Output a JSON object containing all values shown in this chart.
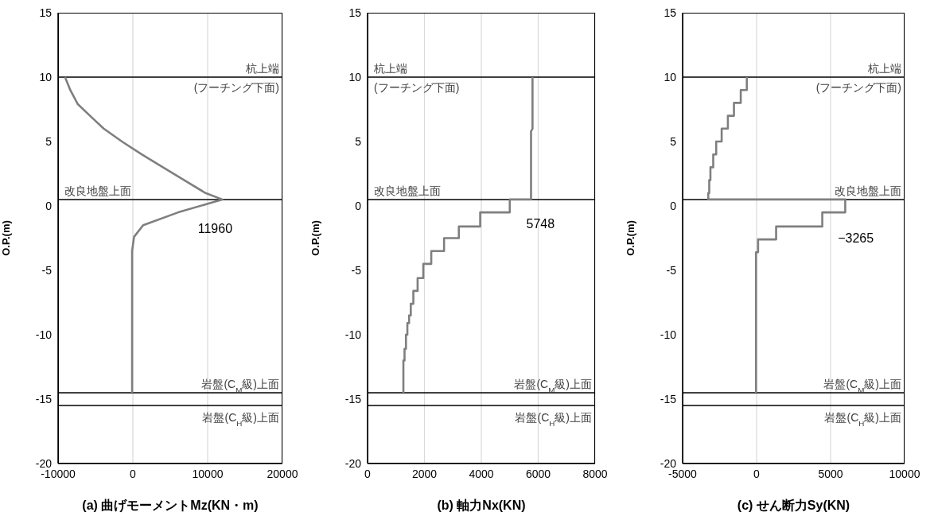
{
  "chart_data": [
    {
      "type": "line",
      "xlabel": "(a) 曲げモーメントMz(KN・m)",
      "ylabel": "O.P.(m)",
      "xlim": [
        -10000,
        20000
      ],
      "xticks": [
        -10000,
        0,
        10000,
        20000
      ],
      "ylim": [
        -20,
        15
      ],
      "yticks": [
        -20,
        -15,
        -10,
        -5,
        0,
        5,
        10,
        15
      ],
      "grid": "x",
      "series": [
        {
          "color": "#7f7f7f",
          "x": [
            -9070,
            -8370,
            -7360,
            -5730,
            -3900,
            -1460,
            1180,
            4020,
            6870,
            9720,
            11960,
            6060,
            1380,
            160,
            -100,
            -100
          ],
          "values": [
            10,
            9,
            7.9,
            7,
            6,
            5,
            4,
            3,
            2,
            1,
            0.5,
            -0.5,
            -1.5,
            -2.4,
            -3.5,
            -14.5
          ]
        }
      ],
      "ref_lines": [
        {
          "axis": "y",
          "value": 10,
          "label": "杭上端\n(フーチング下面)",
          "color": "#000000"
        },
        {
          "axis": "y",
          "value": 0.5,
          "label": "改良地盤上面",
          "color": "#000000"
        },
        {
          "axis": "y",
          "value": -14.5,
          "label": "岩盤(C$_{M}$級)上面",
          "color": "#000000"
        },
        {
          "axis": "y",
          "value": -15.5,
          "label": "岩盤(C$_{H}$級)上面",
          "color": "#000000"
        }
      ],
      "annotations": [
        "11960"
      ]
    },
    {
      "type": "line",
      "xlabel": "(b) 軸力Nx(KN)",
      "ylabel": "O.P.(m)",
      "xlim": [
        0,
        8000
      ],
      "xticks": [
        0,
        2000,
        4000,
        6000,
        8000
      ],
      "ylim": [
        -20,
        15
      ],
      "yticks": [
        -20,
        -15,
        -10,
        -5,
        0,
        5,
        10,
        15
      ],
      "grid": "x",
      "series": [
        {
          "color": "#7f7f7f",
          "x": [
            5800,
            5800,
            5748,
            5748,
            5000,
            5000,
            3960,
            3960,
            3210,
            3210,
            2690,
            2690,
            2240,
            2240,
            1960,
            1960,
            1760,
            1760,
            1610,
            1610,
            1520,
            1520,
            1460,
            1460,
            1400,
            1400,
            1350,
            1350,
            1300,
            1300,
            1260,
            1260
          ],
          "values": [
            10,
            6,
            5.8,
            0.5,
            0.5,
            -0.5,
            -0.5,
            -1.6,
            -1.6,
            -2.5,
            -2.5,
            -3.5,
            -3.5,
            -4.5,
            -4.5,
            -5.6,
            -5.6,
            -6.6,
            -6.6,
            -7.6,
            -7.6,
            -8.5,
            -8.5,
            -9.1,
            -9.1,
            -10,
            -10,
            -11.1,
            -11.1,
            -12,
            -12,
            -14.5
          ]
        }
      ],
      "ref_lines": [
        {
          "axis": "y",
          "value": 10,
          "label": "杭上端\n(フーチング下面)",
          "color": "#000000"
        },
        {
          "axis": "y",
          "value": 0.5,
          "label": "改良地盤上面",
          "color": "#000000"
        },
        {
          "axis": "y",
          "value": -14.5,
          "label": "岩盤(C$_{M}$級)上面",
          "color": "#000000"
        },
        {
          "axis": "y",
          "value": -15.5,
          "label": "岩盤(C$_{H}$級)上面",
          "color": "#000000"
        }
      ],
      "annotations": [
        "5748"
      ]
    },
    {
      "type": "line",
      "xlabel": "(c) せん断力Sy(KN)",
      "ylabel": "O.P.(m)",
      "xlim": [
        -5000,
        10000
      ],
      "xticks": [
        -5000,
        0,
        5000,
        10000
      ],
      "ylim": [
        -20,
        15
      ],
      "yticks": [
        -20,
        -15,
        -10,
        -5,
        0,
        5,
        10,
        15
      ],
      "grid": "x",
      "series": [
        {
          "color": "#7f7f7f",
          "x": [
            -660,
            -660,
            -1070,
            -1070,
            -1530,
            -1530,
            -1940,
            -1940,
            -2360,
            -2360,
            -2730,
            -2730,
            -2930,
            -2930,
            -3120,
            -3120,
            -3200,
            -3200,
            -3265,
            -3265,
            5990,
            5990,
            4440,
            4440,
            1320,
            1320,
            100,
            100,
            -40,
            -40
          ],
          "values": [
            10,
            9,
            9,
            8,
            8,
            7,
            7,
            6,
            6,
            5,
            5,
            4,
            4,
            3,
            3,
            2,
            2,
            1,
            1,
            0.5,
            0.5,
            -0.5,
            -0.5,
            -1.6,
            -1.6,
            -2.6,
            -2.6,
            -3.6,
            -3.6,
            -14.5
          ]
        }
      ],
      "ref_lines": [
        {
          "axis": "y",
          "value": 10,
          "label": "杭上端\n(フーチング下面)",
          "color": "#000000"
        },
        {
          "axis": "y",
          "value": 0.5,
          "label": "改良地盤上面",
          "color": "#000000"
        },
        {
          "axis": "y",
          "value": -14.5,
          "label": "岩盤(C$_{M}$級)上面",
          "color": "#000000"
        },
        {
          "axis": "y",
          "value": -15.5,
          "label": "岩盤(C$_{H}$級)上面",
          "color": "#000000"
        }
      ],
      "annotations": [
        "−3265"
      ]
    }
  ]
}
